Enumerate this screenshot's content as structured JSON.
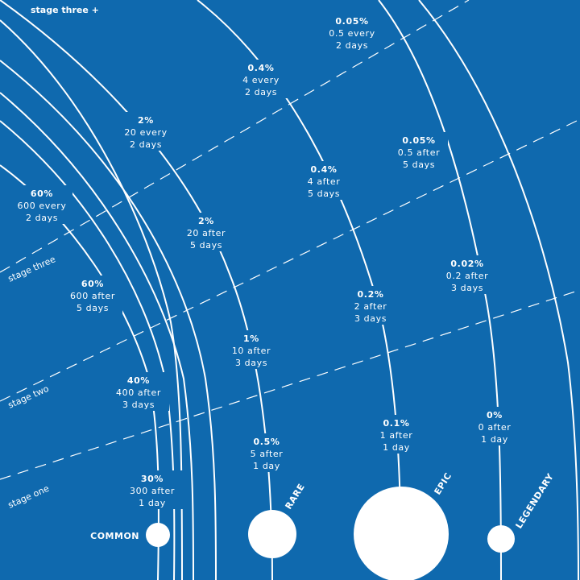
{
  "top_label": "stage three +",
  "stage_labels": [
    "stage three",
    "stage two",
    "stage one"
  ],
  "rarities": [
    {
      "name": "COMMON"
    },
    {
      "name": "RARE"
    },
    {
      "name": "EPIC"
    },
    {
      "name": "LEGENDARY"
    }
  ],
  "drop_labels": [
    {
      "rarity": "COMMON",
      "stage": "stage three +",
      "pct": "60%",
      "count": "600 every",
      "period": "2 days"
    },
    {
      "rarity": "COMMON",
      "stage": "stage three",
      "pct": "60%",
      "count": "600 after",
      "period": "5 days"
    },
    {
      "rarity": "COMMON",
      "stage": "stage two",
      "pct": "40%",
      "count": "400 after",
      "period": "3 days"
    },
    {
      "rarity": "COMMON",
      "stage": "stage one",
      "pct": "30%",
      "count": "300 after",
      "period": "1 day"
    },
    {
      "rarity": "RARE",
      "stage": "stage three +",
      "pct": "2%",
      "count": "20 every",
      "period": "2 days"
    },
    {
      "rarity": "RARE",
      "stage": "stage three",
      "pct": "2%",
      "count": "20 after",
      "period": "5 days"
    },
    {
      "rarity": "RARE",
      "stage": "stage two",
      "pct": "1%",
      "count": "10 after",
      "period": "3 days"
    },
    {
      "rarity": "RARE",
      "stage": "stage one",
      "pct": "0.5%",
      "count": "5 after",
      "period": "1 day"
    },
    {
      "rarity": "EPIC",
      "stage": "stage three +",
      "pct": "0.4%",
      "count": "4 every",
      "period": "2 days"
    },
    {
      "rarity": "EPIC",
      "stage": "stage three",
      "pct": "0.4%",
      "count": "4 after",
      "period": "5 days"
    },
    {
      "rarity": "EPIC",
      "stage": "stage two",
      "pct": "0.2%",
      "count": "2 after",
      "period": "3 days"
    },
    {
      "rarity": "EPIC",
      "stage": "stage one",
      "pct": "0.1%",
      "count": "1 after",
      "period": "1 day"
    },
    {
      "rarity": "LEGENDARY",
      "stage": "stage three +",
      "pct": "0.05%",
      "count": "0.5 every",
      "period": "2 days"
    },
    {
      "rarity": "LEGENDARY",
      "stage": "stage three",
      "pct": "0.05%",
      "count": "0.5 after",
      "period": "5 days"
    },
    {
      "rarity": "LEGENDARY",
      "stage": "stage two",
      "pct": "0.02%",
      "count": "0.2 after",
      "period": "3 days"
    },
    {
      "rarity": "LEGENDARY",
      "stage": "stage one",
      "pct": "0%",
      "count": "0 after",
      "period": "1 day"
    }
  ],
  "colors": {
    "background": "#0f69ae",
    "foreground": "#ffffff"
  }
}
